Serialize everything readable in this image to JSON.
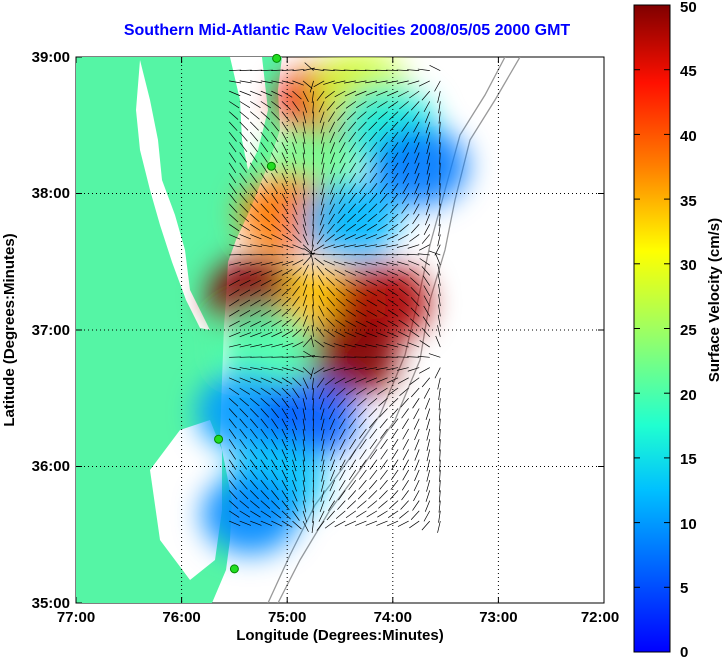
{
  "title": "Southern Mid-Atlantic Raw Velocities 2008/05/05 2000 GMT",
  "map": {
    "xlabel": "Longitude (Degrees:Minutes)",
    "ylabel": "Latitude (Degrees:Minutes)",
    "x_ticks": [
      "77:00",
      "76:00",
      "75:00",
      "74:00",
      "73:00",
      "72:00"
    ],
    "y_ticks": [
      "39:00",
      "38:00",
      "37:00",
      "36:00",
      "35:00"
    ],
    "lon_range": [
      -77,
      -72
    ],
    "lat_range": [
      35,
      39
    ],
    "land_color": "#55f5a5",
    "grid": true
  },
  "colorbar": {
    "label": "Surface Velocity (cm/s)",
    "range": [
      0,
      50
    ],
    "ticks": [
      "50",
      "45",
      "40",
      "35",
      "30",
      "25",
      "20",
      "15",
      "10",
      "5",
      "0"
    ],
    "colormap": "jet"
  },
  "chart_data": {
    "type": "heatmap",
    "variable": "surface velocity",
    "units": "cm/s",
    "vmin": 0,
    "vmax": 50,
    "cells": [
      {
        "lon": -74.65,
        "lat": 38.65,
        "value": 45
      },
      {
        "lon": -74.3,
        "lat": 38.75,
        "value": 28
      },
      {
        "lon": -74.05,
        "lat": 38.5,
        "value": 16
      },
      {
        "lon": -73.75,
        "lat": 38.2,
        "value": 8
      },
      {
        "lon": -74.8,
        "lat": 38.2,
        "value": 22
      },
      {
        "lon": -75.0,
        "lat": 37.85,
        "value": 38
      },
      {
        "lon": -74.4,
        "lat": 37.8,
        "value": 12
      },
      {
        "lon": -75.3,
        "lat": 37.25,
        "value": 50
      },
      {
        "lon": -74.6,
        "lat": 37.2,
        "value": 34
      },
      {
        "lon": -74.1,
        "lat": 37.2,
        "value": 48
      },
      {
        "lon": -74.4,
        "lat": 36.8,
        "value": 50
      },
      {
        "lon": -75.2,
        "lat": 36.85,
        "value": 20
      },
      {
        "lon": -75.4,
        "lat": 36.4,
        "value": 10
      },
      {
        "lon": -74.8,
        "lat": 36.35,
        "value": 6
      },
      {
        "lon": -75.1,
        "lat": 35.9,
        "value": 13
      },
      {
        "lon": -75.35,
        "lat": 35.65,
        "value": 9
      }
    ],
    "stations": [
      {
        "lon": -75.1,
        "lat": 38.99
      },
      {
        "lon": -75.15,
        "lat": 38.2
      },
      {
        "lon": -75.65,
        "lat": 36.2
      },
      {
        "lon": -75.5,
        "lat": 35.25
      }
    ]
  }
}
